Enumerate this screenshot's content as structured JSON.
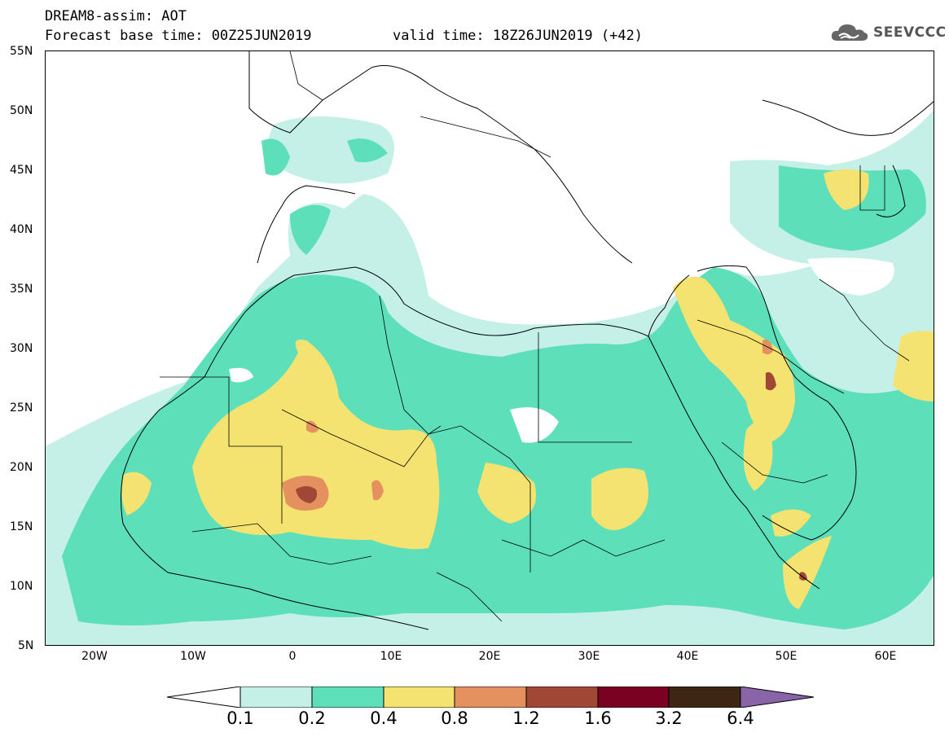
{
  "header": {
    "title": "DREAM8-assim: AOT",
    "base_time": "Forecast base time: 00Z25JUN2019",
    "valid_time": "valid time: 18Z26JUN2019 (+42)",
    "logo_text": "SEEVCCC",
    "logo_icon": "cloud-icon"
  },
  "map": {
    "lat_labels": [
      "55N",
      "50N",
      "45N",
      "40N",
      "35N",
      "30N",
      "25N",
      "20N",
      "15N",
      "10N",
      "5N"
    ],
    "lon_labels": [
      "20W",
      "10W",
      "0",
      "10E",
      "20E",
      "30E",
      "40E",
      "50E",
      "60E"
    ],
    "lon_range": [
      -25,
      65
    ],
    "lat_range": [
      5,
      55
    ]
  },
  "colorbar": {
    "labels": [
      "0.1",
      "0.2",
      "0.4",
      "0.8",
      "1.2",
      "1.6",
      "3.2",
      "6.4"
    ],
    "colors": [
      "#ffffff",
      "#c4f0e8",
      "#5ddfba",
      "#f4e271",
      "#e4915f",
      "#a14736",
      "#7a0022",
      "#3d2614",
      "#8a64a8"
    ]
  }
}
